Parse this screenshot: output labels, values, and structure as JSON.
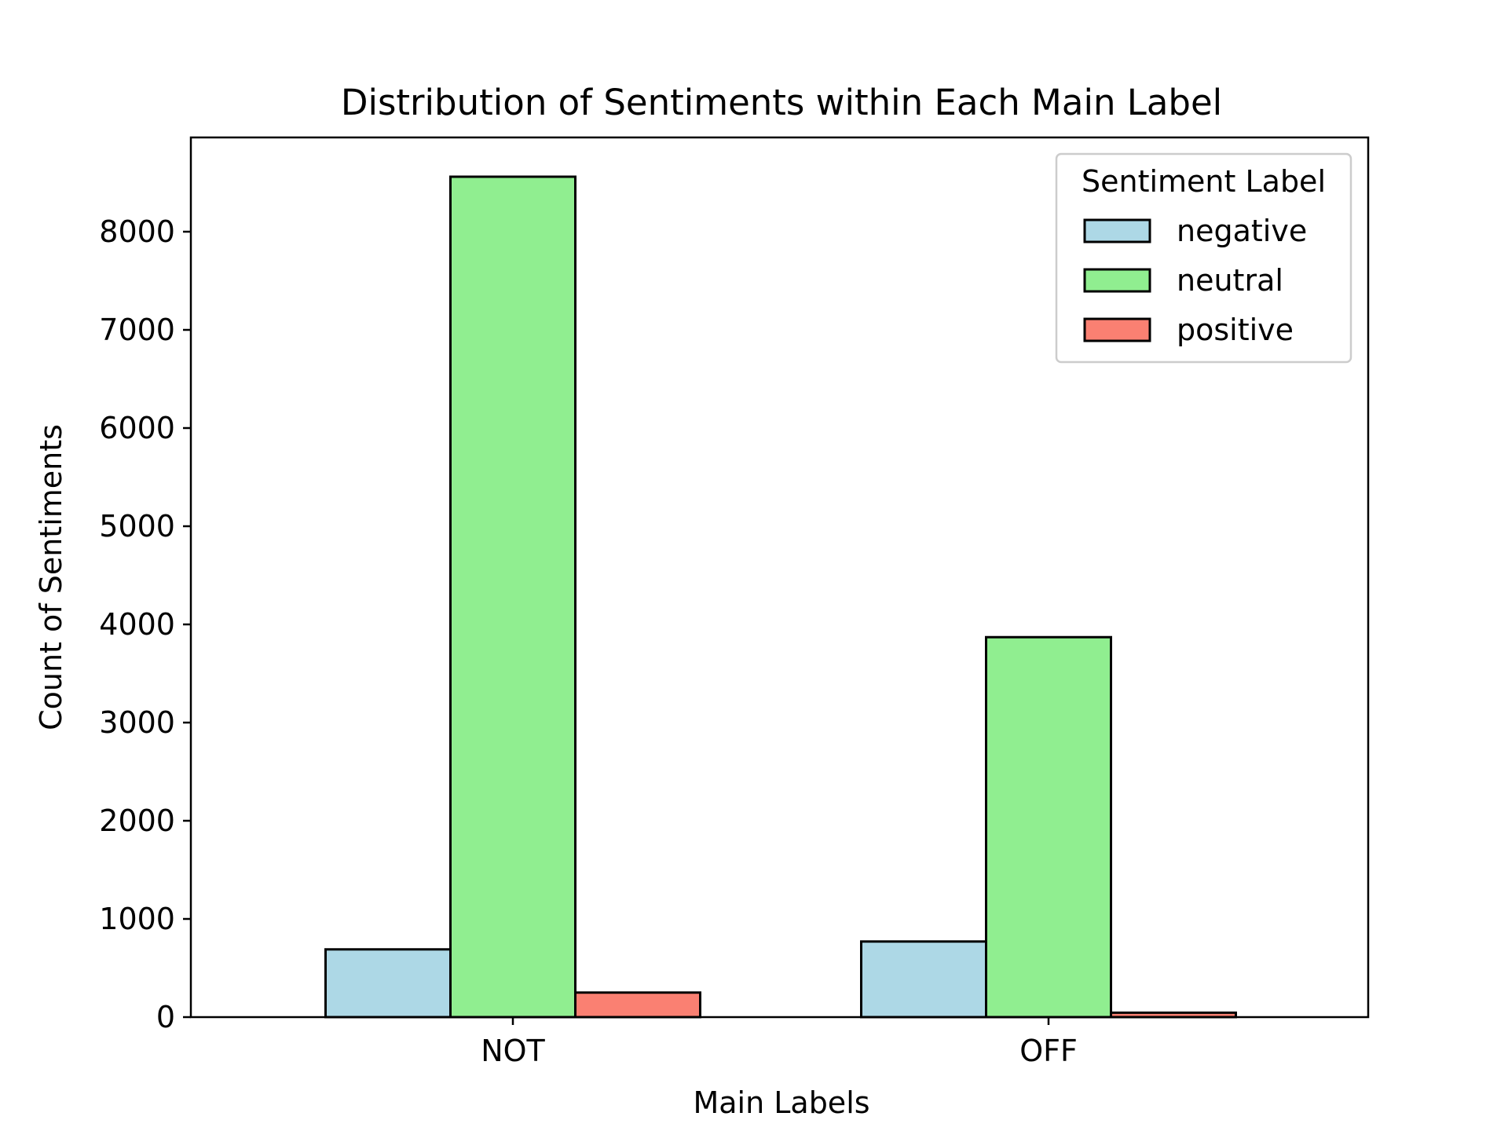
{
  "chart_data": {
    "type": "bar",
    "title": "Distribution of Sentiments within Each Main Label",
    "xlabel": "Main Labels",
    "ylabel": "Count of Sentiments",
    "categories": [
      "NOT",
      "OFF"
    ],
    "series": [
      {
        "name": "negative",
        "values": [
          690,
          770
        ],
        "color": "#add8e6"
      },
      {
        "name": "neutral",
        "values": [
          8560,
          3870
        ],
        "color": "#90ee90"
      },
      {
        "name": "positive",
        "values": [
          250,
          45
        ],
        "color": "#fa8072"
      }
    ],
    "ylim": [
      0,
      8960
    ],
    "yticks": [
      0,
      1000,
      2000,
      3000,
      4000,
      5000,
      6000,
      7000,
      8000
    ],
    "grid": false,
    "legend": {
      "title": "Sentiment Label",
      "placement": "top-right"
    }
  }
}
